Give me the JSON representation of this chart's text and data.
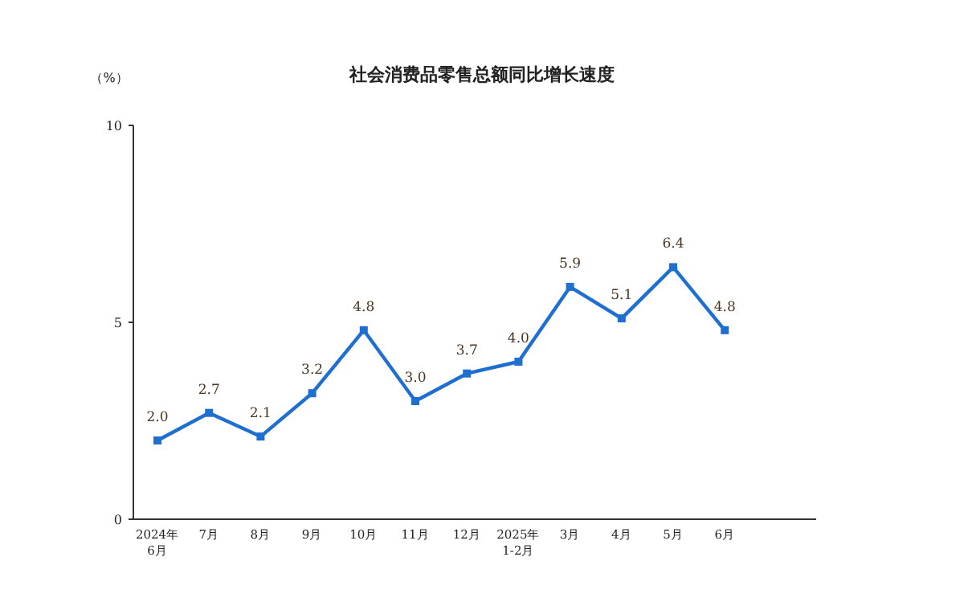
{
  "chart_data": {
    "type": "line",
    "title": "社会消费品零售总额同比增长速度",
    "ylabel": "（%）",
    "categories": [
      "2024年\n6月",
      "7月",
      "8月",
      "9月",
      "10月",
      "11月",
      "12月",
      "2025年\n1-2月",
      "3月",
      "4月",
      "5月",
      "6月"
    ],
    "series": [
      {
        "color": "#1f6fd1",
        "values": [
          2.0,
          2.7,
          2.1,
          3.2,
          4.8,
          3.0,
          3.7,
          4.0,
          5.9,
          5.1,
          6.4,
          4.8
        ],
        "value_labels": [
          "2.0",
          "2.7",
          "2.1",
          "3.2",
          "4.8",
          "3.0",
          "3.7",
          "4.0",
          "5.9",
          "5.1",
          "6.4",
          "4.8"
        ]
      }
    ],
    "ylim": [
      0,
      10
    ],
    "yticks": [
      0,
      5,
      10
    ],
    "marker": "square",
    "line_style": "solid",
    "grid": false
  }
}
